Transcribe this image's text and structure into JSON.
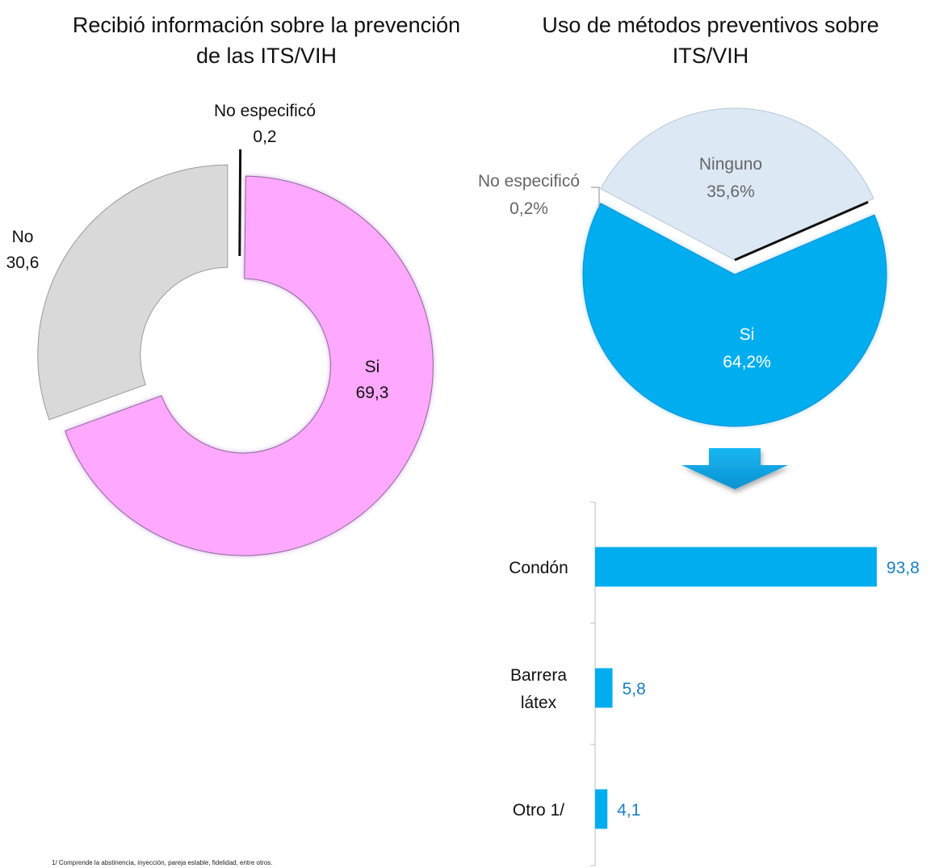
{
  "chart_data": [
    {
      "type": "pie",
      "variant": "donut",
      "title": "Recibió información sobre la prevención\nde las ITS/VIH",
      "slices": [
        {
          "label": "No especificó",
          "value": 0.2,
          "value_label": "0,2",
          "color": "#111111"
        },
        {
          "label": "Si",
          "value": 69.3,
          "value_label": "69,3",
          "color": "#ffa8ff"
        },
        {
          "label": "No",
          "value": 30.6,
          "value_label": "30,6",
          "color": "#d9d9d9"
        }
      ]
    },
    {
      "type": "pie",
      "title": "Uso de métodos preventivos sobre\nITS/VIH",
      "slices": [
        {
          "label": "Ninguno",
          "value": 35.6,
          "value_label": "35,6%",
          "color": "#dce9f5"
        },
        {
          "label": "No especificó",
          "value": 0.2,
          "value_label": "0,2%",
          "color": "#111111"
        },
        {
          "label": "Si",
          "value": 64.2,
          "value_label": "64,2%",
          "color": "#00aeef"
        }
      ]
    },
    {
      "type": "bar",
      "orientation": "horizontal",
      "categories": [
        "Condón",
        "Barrera\nlátex",
        "Otro 1/"
      ],
      "values": [
        93.8,
        5.8,
        4.1
      ],
      "value_labels": [
        "93,8",
        "5,8",
        "4,1"
      ],
      "xlim": [
        0,
        100
      ],
      "color": "#00aeef",
      "label_color": "#1a7fc1"
    }
  ],
  "footnote": "1/ Comprende la abstinencia, inyección, pareja estable, fidelidad, entre otros."
}
